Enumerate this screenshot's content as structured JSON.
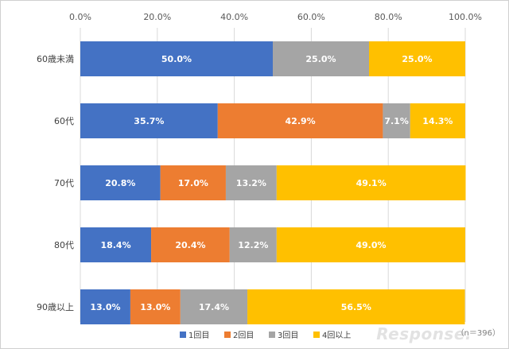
{
  "chart_data": {
    "type": "bar",
    "orientation": "horizontal",
    "stacked": true,
    "categories": [
      "60歳未満",
      "60代",
      "70代",
      "80代",
      "90歳以上"
    ],
    "series": [
      {
        "name": "1回目",
        "color": "#4472C4",
        "values": [
          50.0,
          35.7,
          20.8,
          18.4,
          13.0
        ],
        "labels": [
          "50.0%",
          "35.7%",
          "20.8%",
          "18.4%",
          "13.0%"
        ]
      },
      {
        "name": "2回目",
        "color": "#ED7D31",
        "values": [
          0,
          42.9,
          17.0,
          20.4,
          13.0
        ],
        "labels": [
          "",
          "42.9%",
          "17.0%",
          "20.4%",
          "13.0%"
        ]
      },
      {
        "name": "3回目",
        "color": "#A5A5A5",
        "values": [
          25.0,
          7.1,
          13.2,
          12.2,
          17.4
        ],
        "labels": [
          "25.0%",
          "7.1%",
          "13.2%",
          "12.2%",
          "17.4%"
        ]
      },
      {
        "name": "4回以上",
        "color": "#FFC000",
        "values": [
          25.0,
          14.3,
          49.1,
          49.0,
          56.5
        ],
        "labels": [
          "25.0%",
          "14.3%",
          "49.1%",
          "49.0%",
          "56.5%"
        ]
      }
    ],
    "xticks": [
      "0.0%",
      "20.0%",
      "40.0%",
      "60.0%",
      "80.0%",
      "100.0%"
    ],
    "xlim": [
      0,
      100
    ],
    "grid": true,
    "legend": "bottom",
    "note": "（n＝396）"
  },
  "watermark": "Response."
}
